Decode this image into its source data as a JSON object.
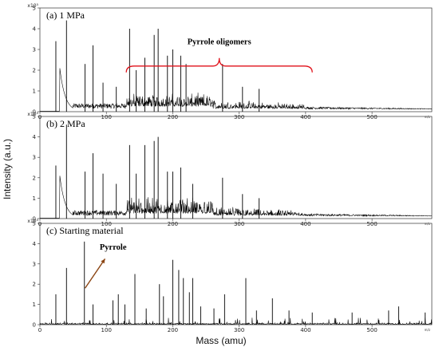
{
  "chart_data": [
    {
      "type": "line",
      "title": "(a) 1 MPa",
      "xlabel": "Mass (amu)",
      "ylabel": "Intensity (a.u.)",
      "xlim": [
        0,
        590
      ],
      "ylim": [
        0,
        5
      ],
      "y_multiplier": "x10^5",
      "x_ticks": [
        0,
        100,
        200,
        300,
        400,
        500
      ],
      "y_ticks": [
        0,
        1,
        2,
        3,
        4,
        5
      ],
      "annotation": "Pyrrole oligomers",
      "annotation_range": [
        130,
        410
      ],
      "peaks": [
        {
          "x": 24,
          "y": 3.4
        },
        {
          "x": 40,
          "y": 4.4
        },
        {
          "x": 68,
          "y": 2.3
        },
        {
          "x": 80,
          "y": 3.2
        },
        {
          "x": 95,
          "y": 1.4
        },
        {
          "x": 115,
          "y": 1.2
        },
        {
          "x": 135,
          "y": 4.0
        },
        {
          "x": 145,
          "y": 2.0
        },
        {
          "x": 158,
          "y": 2.6
        },
        {
          "x": 172,
          "y": 3.7
        },
        {
          "x": 178,
          "y": 4.0
        },
        {
          "x": 192,
          "y": 2.7
        },
        {
          "x": 200,
          "y": 3.0
        },
        {
          "x": 212,
          "y": 2.7
        },
        {
          "x": 220,
          "y": 2.3
        },
        {
          "x": 275,
          "y": 2.3
        },
        {
          "x": 305,
          "y": 1.2
        },
        {
          "x": 330,
          "y": 1.1
        }
      ]
    },
    {
      "type": "line",
      "title": "(b) 2 MPa",
      "xlabel": "Mass (amu)",
      "ylabel": "Intensity (a.u.)",
      "xlim": [
        0,
        590
      ],
      "ylim": [
        0,
        5
      ],
      "y_multiplier": "x10^5",
      "x_ticks": [
        0,
        100,
        200,
        300,
        400,
        500
      ],
      "y_ticks": [
        0,
        1,
        2,
        3,
        4,
        5
      ],
      "peaks": [
        {
          "x": 24,
          "y": 2.6
        },
        {
          "x": 40,
          "y": 4.6
        },
        {
          "x": 68,
          "y": 2.3
        },
        {
          "x": 80,
          "y": 3.2
        },
        {
          "x": 95,
          "y": 2.2
        },
        {
          "x": 115,
          "y": 1.7
        },
        {
          "x": 135,
          "y": 3.6
        },
        {
          "x": 145,
          "y": 2.2
        },
        {
          "x": 158,
          "y": 3.6
        },
        {
          "x": 172,
          "y": 3.8
        },
        {
          "x": 178,
          "y": 4.0
        },
        {
          "x": 192,
          "y": 2.3
        },
        {
          "x": 200,
          "y": 2.3
        },
        {
          "x": 212,
          "y": 2.5
        },
        {
          "x": 230,
          "y": 1.7
        },
        {
          "x": 275,
          "y": 2.0
        },
        {
          "x": 305,
          "y": 1.2
        },
        {
          "x": 330,
          "y": 1.0
        }
      ]
    },
    {
      "type": "line",
      "title": "(c) Starting material",
      "xlabel": "Mass (amu)",
      "ylabel": "Intensity (a.u.)",
      "xlim": [
        0,
        590
      ],
      "ylim": [
        0,
        5
      ],
      "y_multiplier": "x10^5",
      "x_ticks": [
        0,
        100,
        200,
        300,
        400,
        500
      ],
      "y_ticks": [
        0,
        1,
        2,
        3,
        4,
        5
      ],
      "annotation": "Pyrrole",
      "peaks": [
        {
          "x": 24,
          "y": 1.5
        },
        {
          "x": 40,
          "y": 2.8
        },
        {
          "x": 67,
          "y": 4.1
        },
        {
          "x": 80,
          "y": 1.0
        },
        {
          "x": 110,
          "y": 1.2
        },
        {
          "x": 118,
          "y": 1.5
        },
        {
          "x": 128,
          "y": 1.0
        },
        {
          "x": 143,
          "y": 2.5
        },
        {
          "x": 160,
          "y": 0.8
        },
        {
          "x": 180,
          "y": 2.0
        },
        {
          "x": 186,
          "y": 1.4
        },
        {
          "x": 200,
          "y": 3.2
        },
        {
          "x": 209,
          "y": 2.7
        },
        {
          "x": 216,
          "y": 2.3
        },
        {
          "x": 225,
          "y": 1.6
        },
        {
          "x": 230,
          "y": 2.3
        },
        {
          "x": 242,
          "y": 0.9
        },
        {
          "x": 262,
          "y": 0.8
        },
        {
          "x": 278,
          "y": 1.5
        },
        {
          "x": 310,
          "y": 2.3
        },
        {
          "x": 326,
          "y": 0.7
        },
        {
          "x": 350,
          "y": 1.3
        },
        {
          "x": 375,
          "y": 0.7
        },
        {
          "x": 410,
          "y": 0.6
        },
        {
          "x": 470,
          "y": 0.6
        },
        {
          "x": 525,
          "y": 0.7
        },
        {
          "x": 540,
          "y": 0.9
        },
        {
          "x": 580,
          "y": 0.6
        }
      ]
    }
  ],
  "labels": {
    "ylabel": "Intensity (a.u.)",
    "xlabel": "Mass (amu)",
    "multiplier": "x10⁵",
    "mz_unit": "m/z"
  }
}
